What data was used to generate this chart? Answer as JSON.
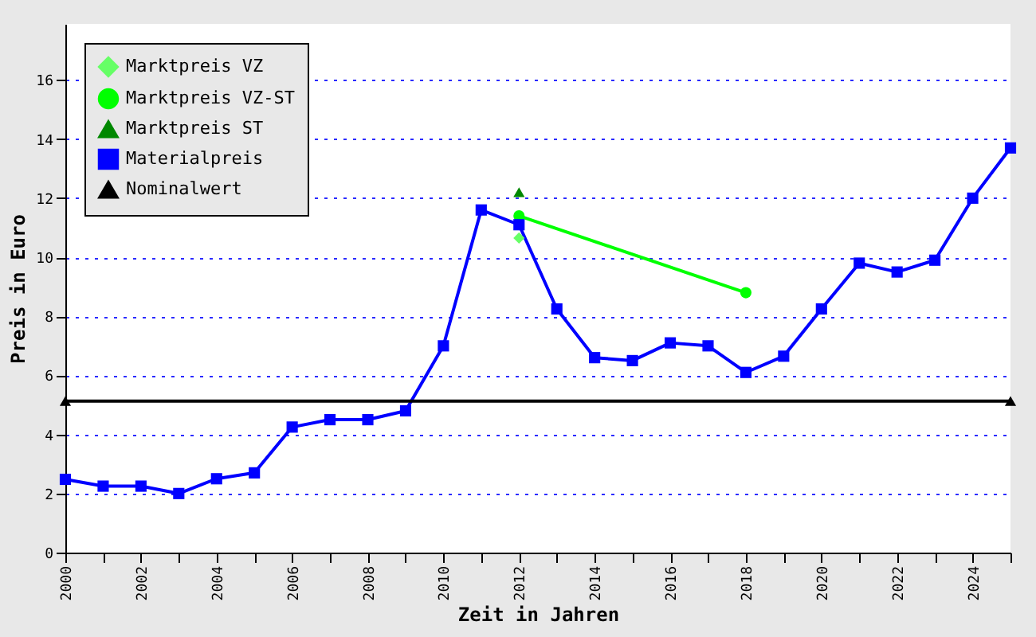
{
  "chart_data": {
    "type": "line",
    "xlabel": "Zeit in Jahren",
    "ylabel": "Preis in Euro",
    "xlim": [
      2000,
      2025
    ],
    "ylim": [
      0,
      17.9
    ],
    "xticks": [
      2000,
      {
        "value": 2001,
        "label": null
      },
      2002,
      {
        "value": 2003,
        "label": null
      },
      2004,
      {
        "value": 2005,
        "label": null
      },
      2006,
      {
        "value": 2007,
        "label": null
      },
      2008,
      {
        "value": 2009,
        "label": null
      },
      2010,
      {
        "value": 2011,
        "label": null
      },
      2012,
      {
        "value": 2013,
        "label": null
      },
      2014,
      {
        "value": 2015,
        "label": null
      },
      2016,
      {
        "value": 2017,
        "label": null
      },
      2018,
      {
        "value": 2019,
        "label": null
      },
      2020,
      {
        "value": 2021,
        "label": null
      },
      2022,
      {
        "value": 2023,
        "label": null
      },
      2024,
      {
        "value": 2025,
        "label": null
      }
    ],
    "yticks": [
      0,
      2,
      4,
      6,
      8,
      10,
      12,
      14,
      16
    ],
    "grid": "y",
    "legend": "top left",
    "series": [
      {
        "name": "Marktpreis VZ",
        "color": "#66ff66",
        "type": "scatter",
        "marker": "diamond",
        "x": [
          2012
        ],
        "values": [
          10.65
        ]
      },
      {
        "name": "Marktpreis VZ-ST",
        "color": "#00ff00",
        "type": "line",
        "marker": "circle",
        "x": [
          2012,
          2018
        ],
        "values": [
          11.4,
          8.8
        ]
      },
      {
        "name": "Marktpreis ST",
        "color": "#008800",
        "type": "scatter",
        "marker": "triangle",
        "x": [
          2012
        ],
        "values": [
          12.2
        ]
      },
      {
        "name": "Materialpreis",
        "color": "#0000ff",
        "type": "line",
        "marker": "square",
        "x": [
          2000,
          2001,
          2002,
          2003,
          2004,
          2005,
          2006,
          2007,
          2008,
          2009,
          2010,
          2011,
          2012,
          2013,
          2014,
          2015,
          2016,
          2017,
          2018,
          2019,
          2020,
          2021,
          2022,
          2023,
          2024,
          2025
        ],
        "values": [
          2.48,
          2.25,
          2.25,
          2.0,
          2.5,
          2.7,
          4.25,
          4.5,
          4.5,
          4.8,
          7.0,
          11.6,
          11.1,
          8.25,
          6.6,
          6.5,
          7.1,
          7.0,
          6.1,
          6.65,
          8.25,
          9.8,
          9.5,
          9.9,
          12.0,
          13.7
        ]
      },
      {
        "name": "Nominalwert",
        "color": "#000000",
        "type": "line",
        "marker": "triangle",
        "x": [
          2000,
          2025
        ],
        "values": [
          5.13,
          5.13
        ]
      }
    ]
  }
}
